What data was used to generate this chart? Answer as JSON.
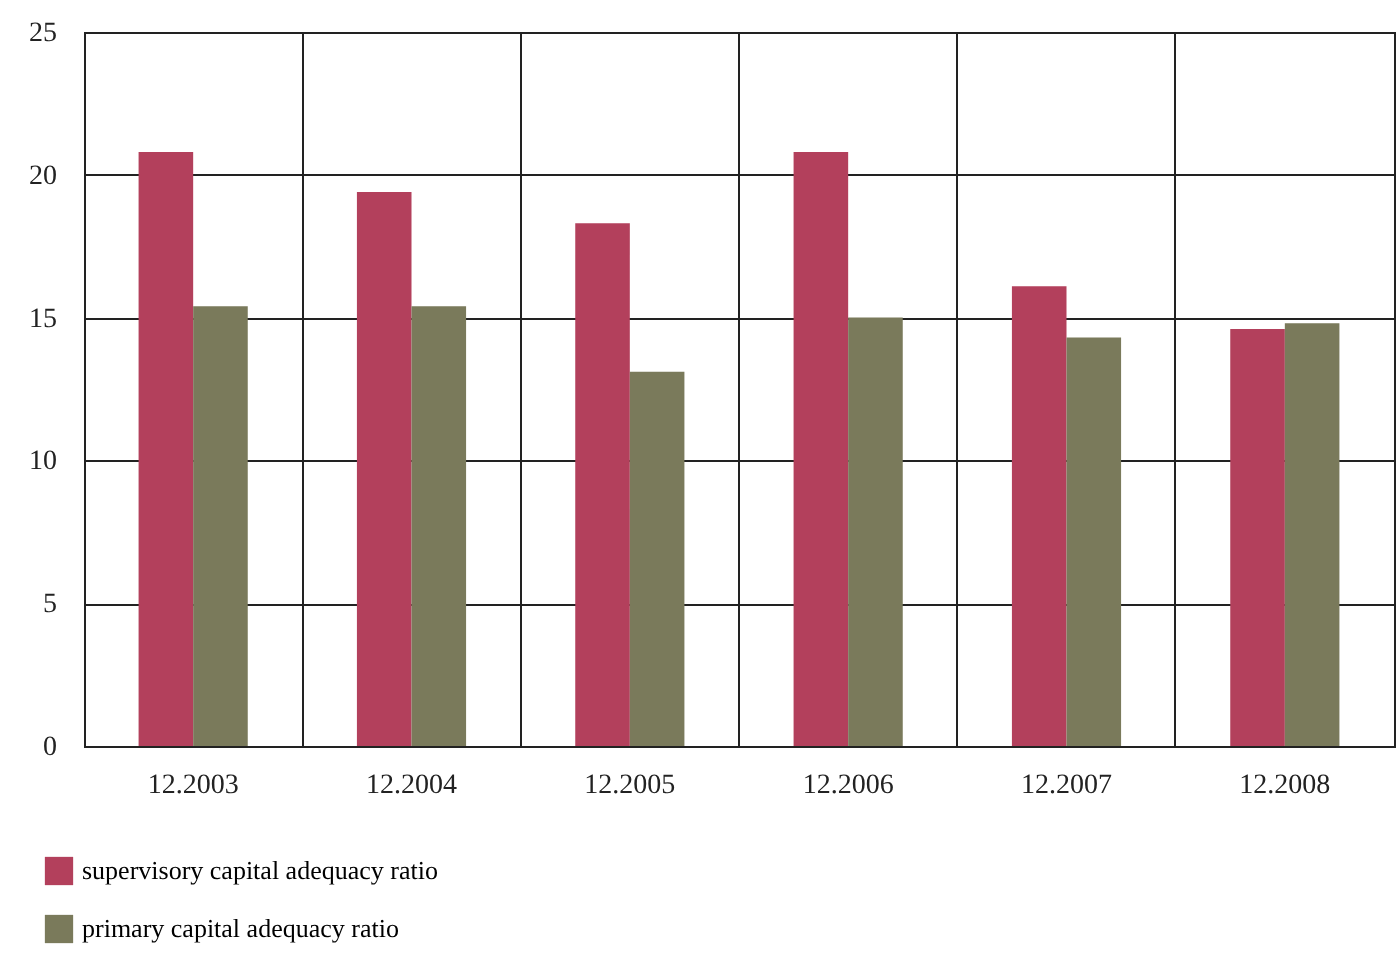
{
  "chart_data": {
    "type": "bar",
    "categories": [
      "12.2003",
      "12.2004",
      "12.2005",
      "12.2006",
      "12.2007",
      "12.2008"
    ],
    "series": [
      {
        "name": "supervisory capital adequacy ratio",
        "color": "#b3405c",
        "values": [
          20.8,
          19.4,
          18.3,
          20.8,
          16.1,
          14.6
        ]
      },
      {
        "name": "primary capital adequacy ratio",
        "color": "#7a7a5b",
        "values": [
          15.4,
          15.4,
          13.1,
          15.0,
          14.3,
          14.8
        ]
      }
    ],
    "ylim": [
      0,
      25
    ],
    "yticks": [
      0,
      5,
      10,
      15,
      20,
      25
    ],
    "grid": true,
    "legend": "bottom left"
  }
}
